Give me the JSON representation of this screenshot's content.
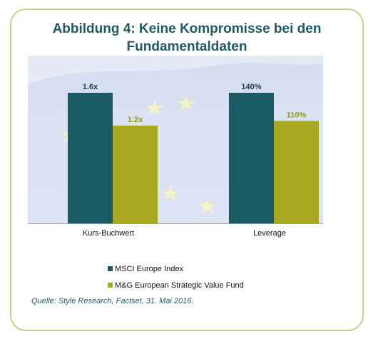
{
  "title": "Abbildung 4: Keine Kompromisse bei den Fundamentaldaten",
  "colors": {
    "msci": "#1a5b63",
    "mg": "#a7a81d",
    "title": "#1f5a64",
    "border": "#c7cf8a"
  },
  "chart_data": {
    "type": "bar",
    "categories": [
      "Kurs-Buchwert",
      "Leverage"
    ],
    "series": [
      {
        "name": "MSCI Europe Index",
        "values": [
          1.6,
          140
        ],
        "labels": [
          "1.6x",
          "140%"
        ]
      },
      {
        "name": "M&G European Strategic Value Fund",
        "values": [
          1.2,
          110
        ],
        "labels": [
          "1.2x",
          "110%"
        ]
      }
    ],
    "legend": "bottom-left",
    "grid": false
  },
  "source": "Quelle: Style Research, Factset, 31. Mai 2016."
}
